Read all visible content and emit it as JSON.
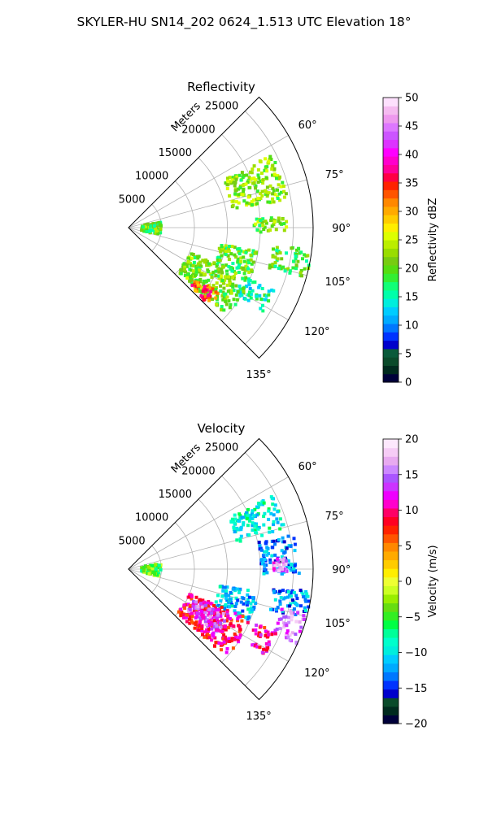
{
  "figure": {
    "title": "SKYLER-HU  SN14_202  0624_1.513 UTC Elevation 18°"
  },
  "chart_data": [
    {
      "type": "heatmap",
      "projection": "polar-sector",
      "title": "Reflectivity",
      "radial_label": "Meters",
      "radial_ticks": [
        5000,
        10000,
        15000,
        20000,
        25000
      ],
      "radial_tick_labels": [
        "5000",
        "10000",
        "15000",
        "20000",
        "25000"
      ],
      "rmax": 28000,
      "azimuth_range_deg": [
        45,
        135
      ],
      "azimuth_ticks": [
        60,
        75,
        90,
        105,
        120,
        135
      ],
      "azimuth_tick_labels": [
        "60°",
        "75°",
        "90°",
        "105°",
        "120°",
        "135°"
      ],
      "grid": true,
      "colorbar": {
        "label": "Reflectivity dBZ",
        "min": 0,
        "max": 50,
        "ticks": [
          0,
          5,
          10,
          15,
          20,
          25,
          30,
          35,
          40,
          45,
          50
        ],
        "tick_labels": [
          "0",
          "5",
          "10",
          "15",
          "20",
          "25",
          "30",
          "35",
          "40",
          "45",
          "50"
        ],
        "colors": [
          "#00003a",
          "#002a1e",
          "#0a4a2a",
          "#0a5a3a",
          "#0000cc",
          "#0033ff",
          "#0077ff",
          "#00aaff",
          "#00ccff",
          "#00eedd",
          "#00ffaa",
          "#11ff77",
          "#33ee33",
          "#55dd11",
          "#77cc11",
          "#99dd00",
          "#bbee00",
          "#ddff00",
          "#ffee00",
          "#ffcc00",
          "#ffaa00",
          "#ff8800",
          "#ff5500",
          "#ff2200",
          "#ff0044",
          "#ff0099",
          "#ff00cc",
          "#ff00ff",
          "#dd33ff",
          "#cc55ff",
          "#dd77ff",
          "#ee99ee",
          "#f5bbf0",
          "#fde0fd"
        ]
      },
      "echo_regions": [
        {
          "az": [
            63,
            80
          ],
          "r": [
            16000,
            24500
          ],
          "value": 22
        },
        {
          "az": [
            86,
            92
          ],
          "r": [
            19000,
            24000
          ],
          "value": 21
        },
        {
          "az": [
            97,
            106
          ],
          "r": [
            22000,
            28000
          ],
          "value": 19
        },
        {
          "az": [
            100,
            113
          ],
          "r": [
            14000,
            20000
          ],
          "value": 20
        },
        {
          "az": [
            113,
            122
          ],
          "r": [
            19000,
            24000
          ],
          "value": 16
        },
        {
          "az": [
            112,
            132
          ],
          "r": [
            10000,
            20000
          ],
          "value": 21
        },
        {
          "az": [
            126,
            134
          ],
          "r": [
            13000,
            17000
          ],
          "value": 33
        },
        {
          "az": [
            80,
            104
          ],
          "r": [
            2000,
            5000
          ],
          "value": 20
        }
      ]
    },
    {
      "type": "heatmap",
      "projection": "polar-sector",
      "title": "Velocity",
      "radial_label": "Meters",
      "radial_ticks": [
        5000,
        10000,
        15000,
        20000,
        25000
      ],
      "radial_tick_labels": [
        "5000",
        "10000",
        "15000",
        "20000",
        "25000"
      ],
      "rmax": 28000,
      "azimuth_range_deg": [
        45,
        135
      ],
      "azimuth_ticks": [
        60,
        75,
        90,
        105,
        120,
        135
      ],
      "azimuth_tick_labels": [
        "60°",
        "75°",
        "90°",
        "105°",
        "120°",
        "135°"
      ],
      "grid": true,
      "colorbar": {
        "label": "Velocity (m/s)",
        "min": -20,
        "max": 20,
        "ticks": [
          -20,
          -15,
          -10,
          -5,
          0,
          5,
          10,
          15,
          20
        ],
        "tick_labels": [
          "−20",
          "−15",
          "−10",
          "−5",
          "0",
          "5",
          "10",
          "15",
          "20"
        ],
        "colors": [
          "#00003a",
          "#002a1e",
          "#0a4a2a",
          "#0000cc",
          "#0033ff",
          "#0077ff",
          "#00aaff",
          "#00ccff",
          "#00eedd",
          "#00ffcc",
          "#00ff99",
          "#00ff44",
          "#33ee22",
          "#66dd11",
          "#99ee00",
          "#ccff22",
          "#eeff33",
          "#ffee00",
          "#ffcc00",
          "#ffaa00",
          "#ff8800",
          "#ff5500",
          "#ff2200",
          "#ff0022",
          "#ff0066",
          "#ff00cc",
          "#ee00ff",
          "#cc33ff",
          "#aa55ff",
          "#cc88ff",
          "#e8aaf0",
          "#f6ccf6",
          "#fde8fd"
        ]
      },
      "echo_regions": [
        {
          "az": [
            63,
            76
          ],
          "r": [
            17000,
            24500
          ],
          "value": -9
        },
        {
          "az": [
            78,
            92
          ],
          "r": [
            20000,
            26000
          ],
          "value": -13
        },
        {
          "az": [
            86,
            91
          ],
          "r": [
            22000,
            24000
          ],
          "value": 15
        },
        {
          "az": [
            97,
            106
          ],
          "r": [
            22000,
            28000
          ],
          "value": -12
        },
        {
          "az": [
            100,
            113
          ],
          "r": [
            14000,
            20000
          ],
          "value": -11
        },
        {
          "az": [
            104,
            114
          ],
          "r": [
            24000,
            28000
          ],
          "value": 15
        },
        {
          "az": [
            113,
            122
          ],
          "r": [
            21000,
            24500
          ],
          "value": 10
        },
        {
          "az": [
            112,
            132
          ],
          "r": [
            10000,
            20000
          ],
          "value": 9
        },
        {
          "az": [
            114,
            126
          ],
          "r": [
            11000,
            17000
          ],
          "value": 14
        },
        {
          "az": [
            80,
            104
          ],
          "r": [
            2000,
            5000
          ],
          "value": -4
        }
      ]
    }
  ]
}
